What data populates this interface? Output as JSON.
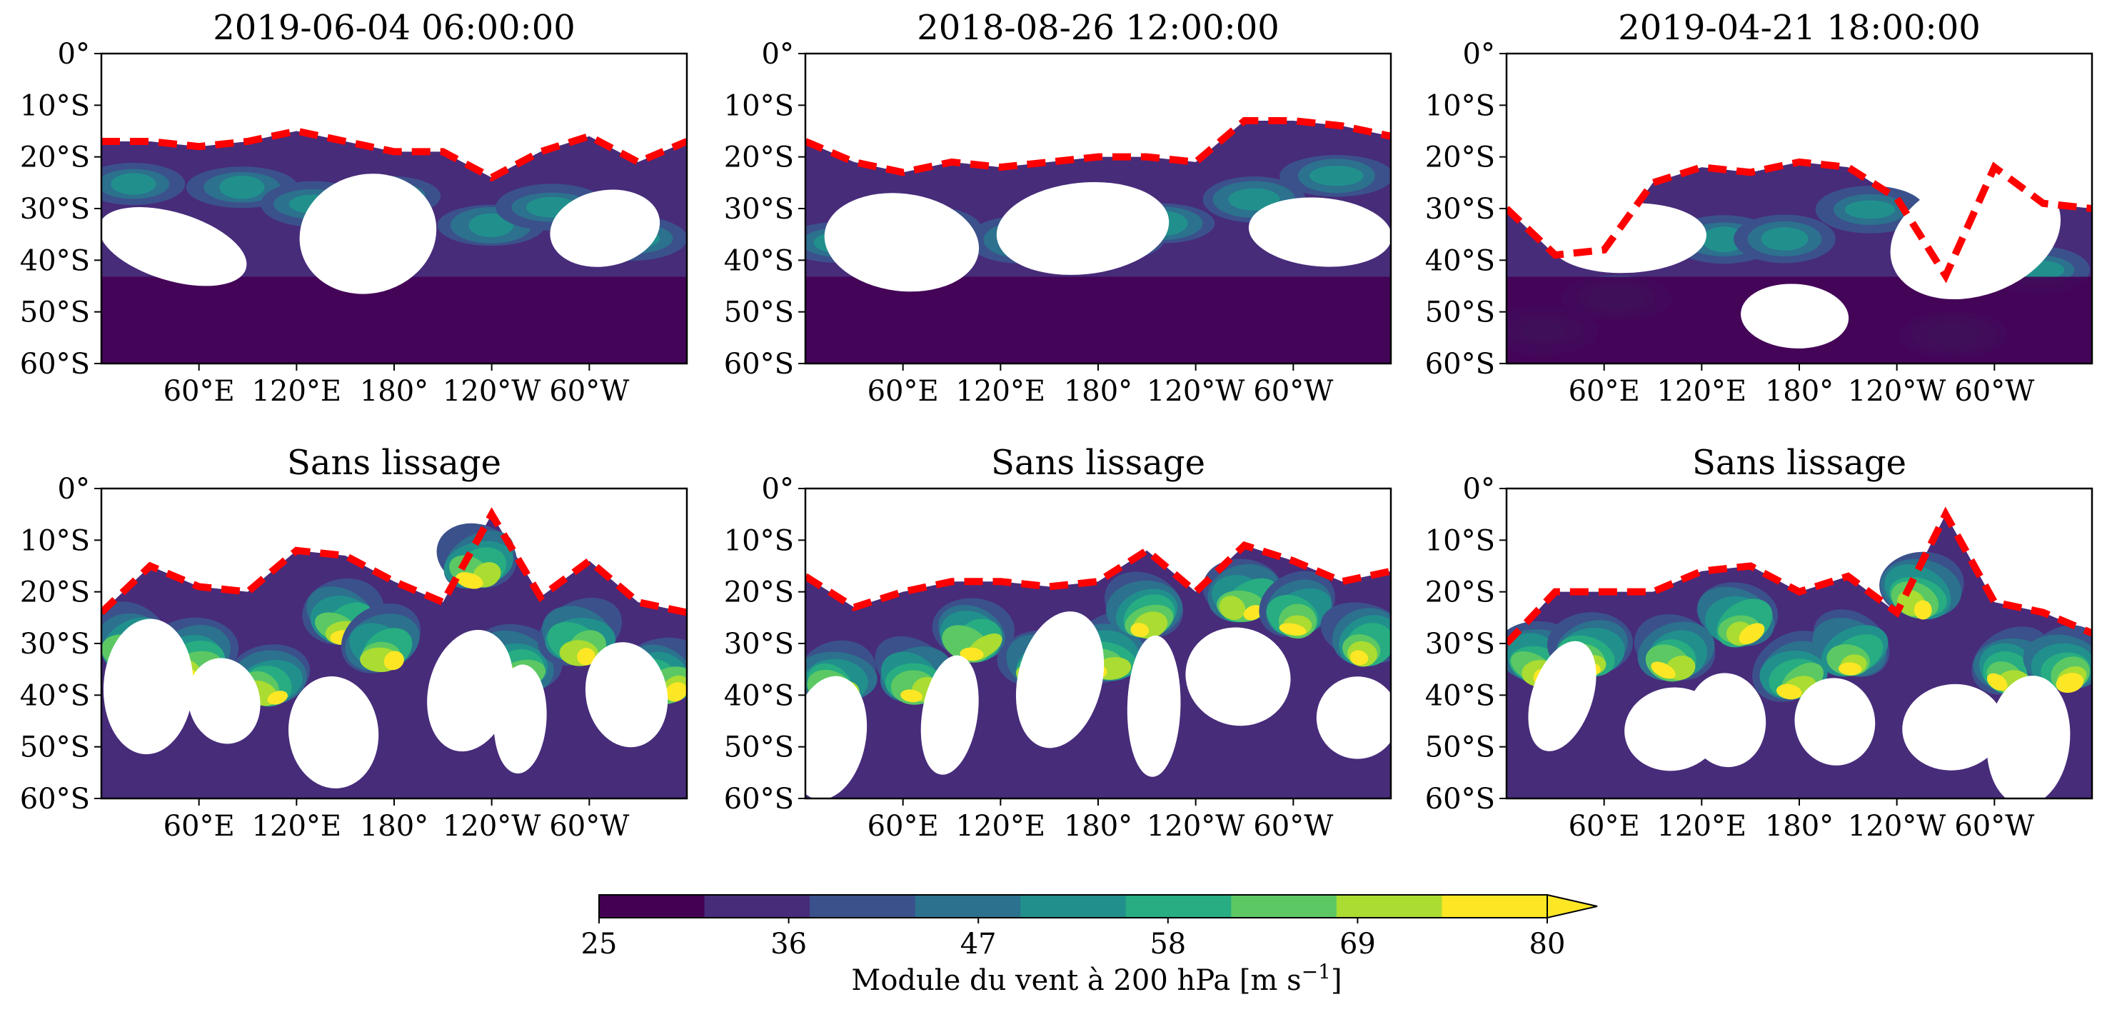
{
  "figure": {
    "panels": [
      {
        "title": "2019-06-04 06:00:00",
        "row": 0,
        "col": 0
      },
      {
        "title": "2018-08-26 12:00:00",
        "row": 0,
        "col": 1
      },
      {
        "title": "2019-04-21 18:00:00",
        "row": 0,
        "col": 2
      },
      {
        "title": "Sans lissage",
        "row": 1,
        "col": 0
      },
      {
        "title": "Sans lissage",
        "row": 1,
        "col": 1
      },
      {
        "title": "Sans lissage",
        "row": 1,
        "col": 2
      }
    ],
    "y_ticks": [
      "0°",
      "10°S",
      "20°S",
      "30°S",
      "40°S",
      "50°S",
      "60°S"
    ],
    "x_ticks": [
      "60°E",
      "120°E",
      "180°",
      "120°W",
      "60°W"
    ],
    "colorbar": {
      "label_main": "Module du vent à 200 hPa [m s",
      "label_sup": "−1",
      "label_end": "]",
      "ticks": [
        "25",
        "36",
        "47",
        "58",
        "69",
        "80"
      ]
    }
  },
  "chart_data": [
    {
      "type": "heatmap",
      "title": "2019-06-04 06:00:00",
      "variable": "wind speed at 200 hPa",
      "units": "m s-1",
      "x_ticks_deg_east": [
        60,
        120,
        180,
        240,
        300
      ],
      "ylim_lat": [
        -60,
        0
      ],
      "y_ticks_lat": [
        0,
        -10,
        -20,
        -30,
        -40,
        -50,
        -60
      ],
      "boundary_lat": {
        "lon": [
          0,
          30,
          60,
          90,
          120,
          150,
          180,
          210,
          240,
          270,
          300,
          330,
          360
        ],
        "lat": [
          -17,
          -17,
          -18,
          -17,
          -15,
          -17,
          -19,
          -19,
          -24,
          -19,
          -16,
          -21,
          -17
        ]
      },
      "boundary_style": "red dashed"
    },
    {
      "type": "heatmap",
      "title": "2018-08-26 12:00:00",
      "variable": "wind speed at 200 hPa",
      "units": "m s-1",
      "x_ticks_deg_east": [
        60,
        120,
        180,
        240,
        300
      ],
      "ylim_lat": [
        -60,
        0
      ],
      "boundary_lat": {
        "lon": [
          0,
          30,
          60,
          90,
          120,
          150,
          180,
          210,
          240,
          270,
          300,
          330,
          360
        ],
        "lat": [
          -17,
          -21,
          -23,
          -21,
          -22,
          -21,
          -20,
          -20,
          -21,
          -13,
          -13,
          -14,
          -16
        ]
      },
      "boundary_style": "red dashed"
    },
    {
      "type": "heatmap",
      "title": "2019-04-21 18:00:00",
      "variable": "wind speed at 200 hPa",
      "units": "m s-1",
      "x_ticks_deg_east": [
        60,
        120,
        180,
        240,
        300
      ],
      "ylim_lat": [
        -60,
        0
      ],
      "boundary_lat": {
        "lon": [
          0,
          30,
          60,
          90,
          120,
          150,
          180,
          210,
          240,
          270,
          300,
          330,
          360
        ],
        "lat": [
          -30,
          -39,
          -38,
          -25,
          -22,
          -23,
          -21,
          -22,
          -28,
          -43,
          -22,
          -29,
          -30
        ]
      },
      "boundary_style": "red dashed"
    },
    {
      "type": "heatmap",
      "title": "Sans lissage",
      "variable": "wind speed at 200 hPa",
      "units": "m s-1",
      "x_ticks_deg_east": [
        60,
        120,
        180,
        240,
        300
      ],
      "ylim_lat": [
        -60,
        0
      ],
      "boundary_lat": {
        "lon": [
          0,
          30,
          60,
          90,
          120,
          150,
          180,
          210,
          240,
          270,
          300,
          330,
          360
        ],
        "lat": [
          -24,
          -15,
          -19,
          -20,
          -12,
          -13,
          -18,
          -22,
          -5,
          -21,
          -14,
          -22,
          -24
        ]
      },
      "boundary_style": "red dashed"
    },
    {
      "type": "heatmap",
      "title": "Sans lissage",
      "variable": "wind speed at 200 hPa",
      "units": "m s-1",
      "x_ticks_deg_east": [
        60,
        120,
        180,
        240,
        300
      ],
      "ylim_lat": [
        -60,
        0
      ],
      "boundary_lat": {
        "lon": [
          0,
          30,
          60,
          90,
          120,
          150,
          180,
          210,
          240,
          270,
          300,
          330,
          360
        ],
        "lat": [
          -17,
          -23,
          -20,
          -18,
          -18,
          -19,
          -18,
          -12,
          -20,
          -11,
          -14,
          -18,
          -16
        ]
      },
      "boundary_style": "red dashed"
    },
    {
      "type": "heatmap",
      "title": "Sans lissage",
      "variable": "wind speed at 200 hPa",
      "units": "m s-1",
      "x_ticks_deg_east": [
        60,
        120,
        180,
        240,
        300
      ],
      "ylim_lat": [
        -60,
        0
      ],
      "boundary_lat": {
        "lon": [
          0,
          30,
          60,
          90,
          120,
          150,
          180,
          210,
          240,
          270,
          300,
          330,
          360
        ],
        "lat": [
          -30,
          -20,
          -20,
          -20,
          -16,
          -15,
          -20,
          -17,
          -24,
          -5,
          -22,
          -24,
          -28
        ]
      },
      "boundary_style": "red dashed"
    },
    {
      "type": "colorbar",
      "vmin": 25,
      "vmax": 80,
      "extend": "max",
      "levels": 10,
      "colors": [
        "#440154",
        "#472c7a",
        "#3b518b",
        "#2c718e",
        "#21908d",
        "#27ad81",
        "#5cc863",
        "#aadc32",
        "#fde725"
      ],
      "boundary_color": "#ff0000",
      "background_color": "#ffffff"
    }
  ]
}
